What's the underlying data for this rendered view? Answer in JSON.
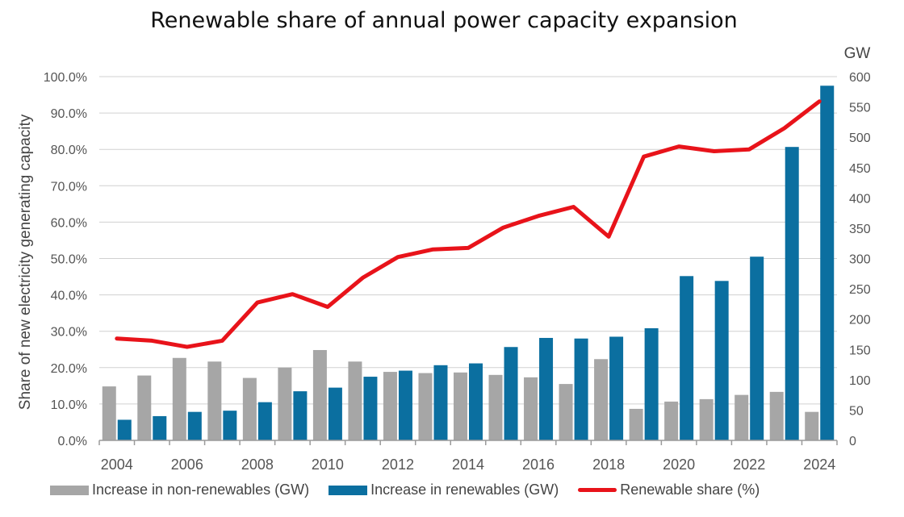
{
  "chart_data": {
    "type": "bar",
    "title": "Renewable share of annual power capacity expansion",
    "ylabel_left": "Share of new electricity generating capacity",
    "ylabel_right": "GW",
    "ylim_left": [
      0,
      100
    ],
    "ylim_right": [
      0,
      600
    ],
    "yticks_left": [
      "0.0%",
      "10.0%",
      "20.0%",
      "30.0%",
      "40.0%",
      "50.0%",
      "60.0%",
      "70.0%",
      "80.0%",
      "90.0%",
      "100.0%"
    ],
    "yticks_right": [
      "0",
      "50",
      "100",
      "150",
      "200",
      "250",
      "300",
      "350",
      "400",
      "450",
      "500",
      "550",
      "600"
    ],
    "xtick_labels": [
      "2004",
      "2006",
      "2008",
      "2010",
      "2012",
      "2014",
      "2016",
      "2018",
      "2020",
      "2022",
      "2024"
    ],
    "categories": [
      "2004",
      "2005",
      "2006",
      "2007",
      "2008",
      "2009",
      "2010",
      "2011",
      "2012",
      "2013",
      "2014",
      "2015",
      "2016",
      "2017",
      "2018",
      "2019",
      "2020",
      "2021",
      "2022",
      "2023",
      "2024"
    ],
    "grid": true,
    "legend_position": "bottom",
    "series": [
      {
        "name": "Increase in non-renewables (GW)",
        "kind": "bar",
        "axis": "right",
        "color": "#a6a6a6",
        "values": [
          89,
          107,
          136,
          130,
          103,
          120,
          149,
          130,
          113,
          111,
          112,
          108,
          104,
          93,
          134,
          52,
          64,
          68,
          75,
          80,
          47
        ]
      },
      {
        "name": "Increase in renewables (GW)",
        "kind": "bar",
        "axis": "right",
        "color": "#0b6fa0",
        "values": [
          34,
          40,
          47,
          49,
          63,
          81,
          87,
          105,
          115,
          124,
          127,
          154,
          169,
          168,
          171,
          185,
          271,
          263,
          303,
          484,
          585
        ]
      },
      {
        "name": "Renewable share (%)",
        "kind": "line",
        "axis": "left",
        "color": "#e8131a",
        "values": [
          28.0,
          27.4,
          25.7,
          27.4,
          37.9,
          40.2,
          36.7,
          44.7,
          50.4,
          52.5,
          52.9,
          58.5,
          61.7,
          64.2,
          56.0,
          78.0,
          80.8,
          79.5,
          80.0,
          85.8,
          93.2
        ]
      }
    ]
  }
}
